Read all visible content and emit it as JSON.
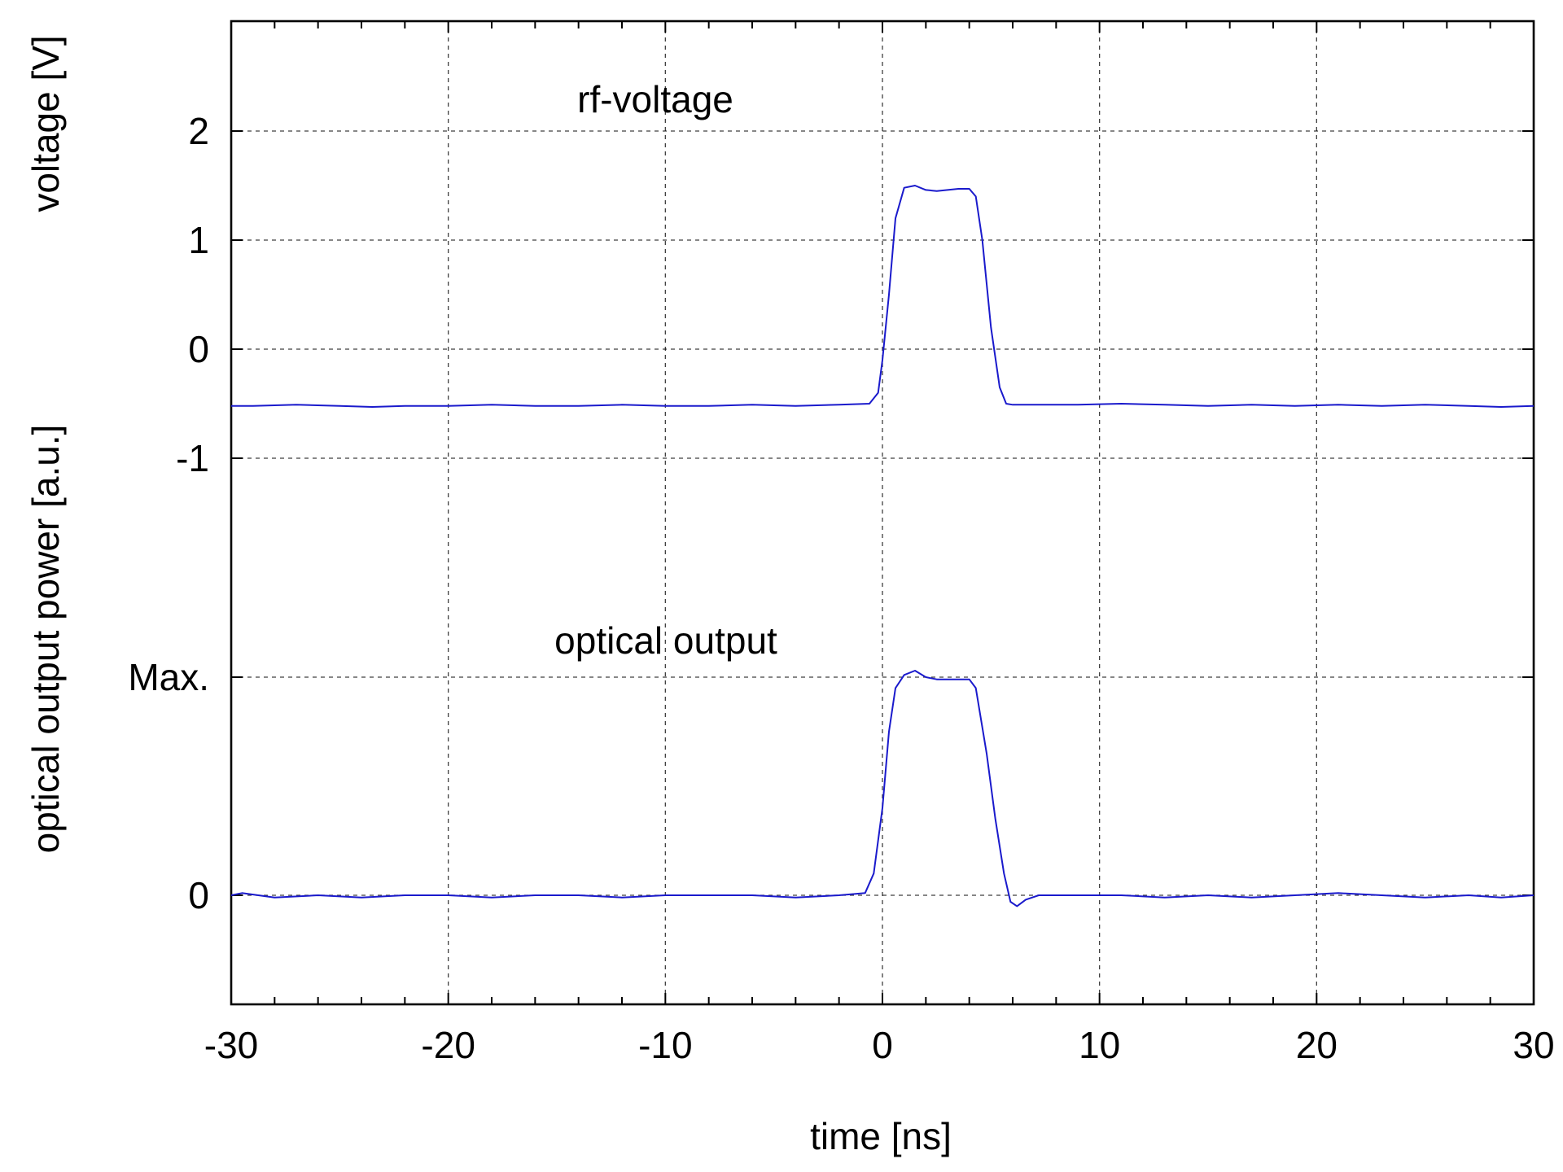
{
  "chart_data": {
    "type": "line",
    "xlabel": "time [ns]",
    "ylabel_upper": "voltage [V]",
    "ylabel_lower": "optical output power [a.u.]",
    "xlim": [
      -30,
      30
    ],
    "x_ticks": [
      -30,
      -20,
      -10,
      0,
      10,
      20,
      30
    ],
    "x_tick_labels": [
      "-30",
      "-20",
      "-10",
      "0",
      "10",
      "20",
      "30"
    ],
    "y_ticks": [
      {
        "label": "2"
      },
      {
        "label": "1"
      },
      {
        "label": "0"
      },
      {
        "label": "-1"
      },
      {
        "label": "Max."
      },
      {
        "label": "0"
      }
    ],
    "grid": true,
    "line_color": "#1a1acc",
    "annotations": [
      "rf-voltage",
      "optical output"
    ],
    "series": [
      {
        "name": "rf-voltage",
        "unit": "V",
        "x": [
          -30,
          -29,
          -27,
          -25,
          -23.5,
          -22,
          -20,
          -18,
          -16,
          -14,
          -12,
          -10,
          -8,
          -6,
          -4,
          -2,
          -0.6,
          -0.2,
          0,
          0.3,
          0.6,
          1,
          1.5,
          2,
          2.5,
          3,
          3.5,
          4,
          4.3,
          4.6,
          5,
          5.4,
          5.7,
          6,
          7,
          9,
          11,
          13,
          15,
          17,
          19,
          21,
          23,
          25,
          27,
          28.5,
          30
        ],
        "y": [
          -0.52,
          -0.52,
          -0.51,
          -0.52,
          -0.53,
          -0.52,
          -0.52,
          -0.51,
          -0.52,
          -0.52,
          -0.51,
          -0.52,
          -0.52,
          -0.51,
          -0.52,
          -0.51,
          -0.5,
          -0.4,
          -0.1,
          0.5,
          1.2,
          1.48,
          1.5,
          1.46,
          1.45,
          1.46,
          1.47,
          1.47,
          1.4,
          1.0,
          0.2,
          -0.35,
          -0.5,
          -0.51,
          -0.51,
          -0.51,
          -0.5,
          -0.51,
          -0.52,
          -0.51,
          -0.52,
          -0.51,
          -0.52,
          -0.51,
          -0.52,
          -0.53,
          -0.52
        ]
      },
      {
        "name": "optical output",
        "unit": "a.u.",
        "x": [
          -30,
          -29.5,
          -28,
          -26,
          -24,
          -22,
          -20,
          -18,
          -16,
          -14,
          -12,
          -10,
          -8,
          -6,
          -4,
          -2,
          -0.8,
          -0.4,
          0,
          0.3,
          0.6,
          1,
          1.5,
          2,
          2.5,
          3,
          3.5,
          4,
          4.3,
          4.8,
          5.2,
          5.6,
          5.9,
          6.2,
          6.6,
          7.2,
          9,
          11,
          13,
          15,
          17,
          19,
          21,
          23,
          25,
          27,
          28.5,
          30
        ],
        "y": [
          0.0,
          0.01,
          -0.01,
          0.0,
          -0.01,
          0.0,
          0.0,
          -0.01,
          0.0,
          0.0,
          -0.01,
          0.0,
          0.0,
          0.0,
          -0.01,
          0.0,
          0.01,
          0.1,
          0.4,
          0.75,
          0.95,
          1.01,
          1.03,
          1.0,
          0.99,
          0.99,
          0.99,
          0.99,
          0.95,
          0.65,
          0.35,
          0.1,
          -0.03,
          -0.05,
          -0.02,
          0.0,
          0.0,
          0.0,
          -0.01,
          0.0,
          -0.01,
          0.0,
          0.01,
          0.0,
          -0.01,
          0.0,
          -0.01,
          0.0
        ]
      }
    ]
  }
}
